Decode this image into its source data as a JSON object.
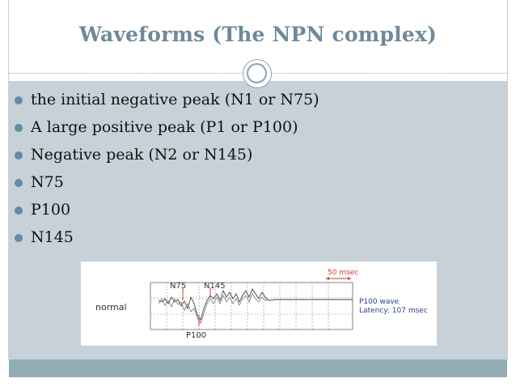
{
  "slide": {
    "title": "Waveforms (The NPN complex)",
    "bullets": [
      "the initial negative peak (N1 or N75)̣",
      "A large positive peak (P1 or P100)",
      "Negative peak (N2 or N145)",
      "N75",
      "P100",
      "N145"
    ],
    "bullet_color": "#5e8ea2",
    "title_color": "#6e8a9a",
    "background_color": "#c7d1d7",
    "footer_color": "#93adb4"
  },
  "figure": {
    "trace_label": "normal",
    "peak_labels": [
      "N75",
      "N145",
      "P100"
    ],
    "scale_label": "50 msec",
    "wave_name": "P100 wave",
    "latency_text": "Latency: 107 msec",
    "accent_color": "#d43a2a"
  }
}
